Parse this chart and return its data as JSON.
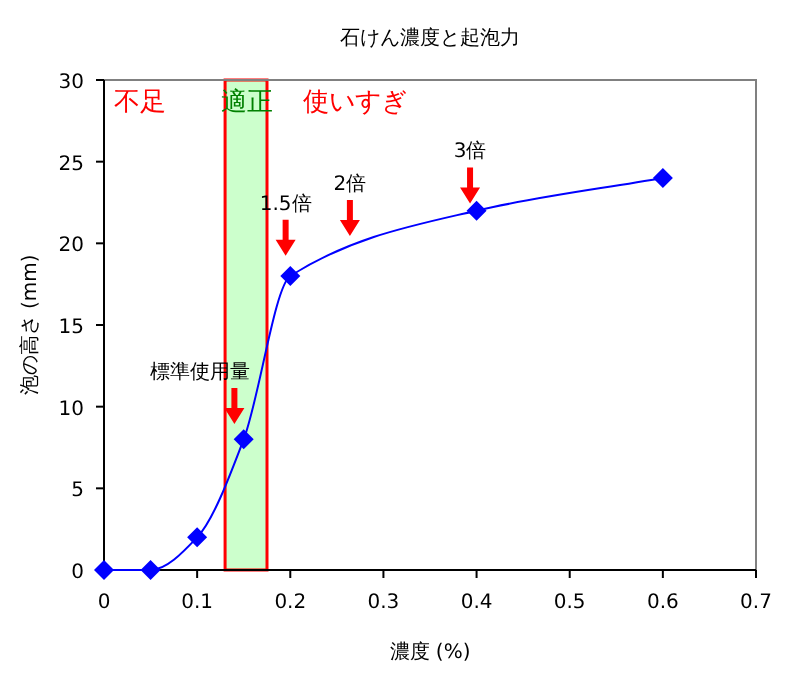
{
  "chart_data": {
    "type": "line",
    "title": "石けん濃度と起泡力",
    "xlabel": "濃度 (%)",
    "ylabel": "泡の高さ (mm)",
    "x": [
      0,
      0.05,
      0.1,
      0.15,
      0.2,
      0.4,
      0.6
    ],
    "series": [
      {
        "color": "#0000ff",
        "values": [
          0,
          0,
          2,
          8,
          18,
          22,
          24
        ]
      }
    ],
    "marker": "diamond",
    "grid": false,
    "xlim": [
      0,
      0.7
    ],
    "xticks": [
      0,
      0.1,
      0.2,
      0.3,
      0.4,
      0.5,
      0.6,
      0.7
    ],
    "ylim": [
      0,
      30
    ],
    "yticks": [
      0,
      5,
      10,
      15,
      20,
      25,
      30
    ],
    "bands": [
      {
        "axis": "x",
        "from": 0.13,
        "to": 0.175,
        "label": "適正",
        "color": "#ccffcc"
      }
    ],
    "annotations": [
      "不足",
      "使いすぎ",
      {
        "text": "標準使用量",
        "x": 0.14,
        "y": 8.7
      },
      {
        "text": "1.5倍",
        "x": 0.195,
        "y": 19
      },
      {
        "text": "2倍",
        "x": 0.264,
        "y": 20.2
      },
      {
        "text": "3倍",
        "x": 0.393,
        "y": 22.2
      }
    ]
  }
}
